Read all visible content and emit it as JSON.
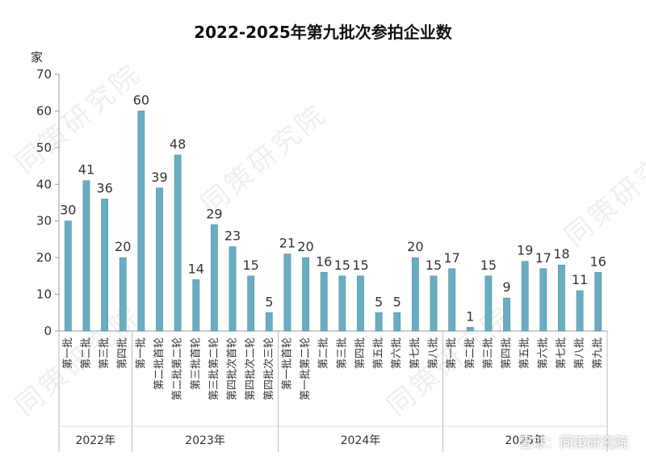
{
  "chart_data": {
    "type": "bar",
    "title": "2022-2025年第九批次参拍企业数",
    "ylabel": "家",
    "ylim": [
      0,
      70
    ],
    "yticks": [
      0,
      10,
      20,
      30,
      40,
      50,
      60,
      70
    ],
    "grid": false,
    "color": "#6aadc2",
    "groups": [
      {
        "name": "2022年",
        "categories": [
          "第一批",
          "第二批",
          "第三批",
          "第四批"
        ],
        "values": [
          30,
          41,
          36,
          20
        ]
      },
      {
        "name": "2023年",
        "categories": [
          "第一批",
          "第二批首轮",
          "第二批第二轮",
          "第三批首轮",
          "第三批第二轮",
          "第四批次首轮",
          "第四批次二轮",
          "第四批次三轮"
        ],
        "values": [
          60,
          39,
          48,
          14,
          29,
          23,
          15,
          5
        ]
      },
      {
        "name": "2024年",
        "categories": [
          "第一批首轮",
          "第一批第二轮",
          "第二批",
          "第三批",
          "第四批",
          "第五批",
          "第六批",
          "第七批",
          "第八批"
        ],
        "values": [
          21,
          20,
          16,
          15,
          15,
          5,
          5,
          20,
          15
        ]
      },
      {
        "name": "2025年",
        "categories": [
          "第一批",
          "第二批",
          "第三批",
          "第四批",
          "第五批",
          "第六批",
          "第七批",
          "第八批",
          "第九批"
        ],
        "values": [
          17,
          1,
          15,
          9,
          19,
          17,
          18,
          11,
          16
        ]
      }
    ]
  },
  "watermark_text": "同策研究院",
  "brand": "雪球：同策研究院"
}
